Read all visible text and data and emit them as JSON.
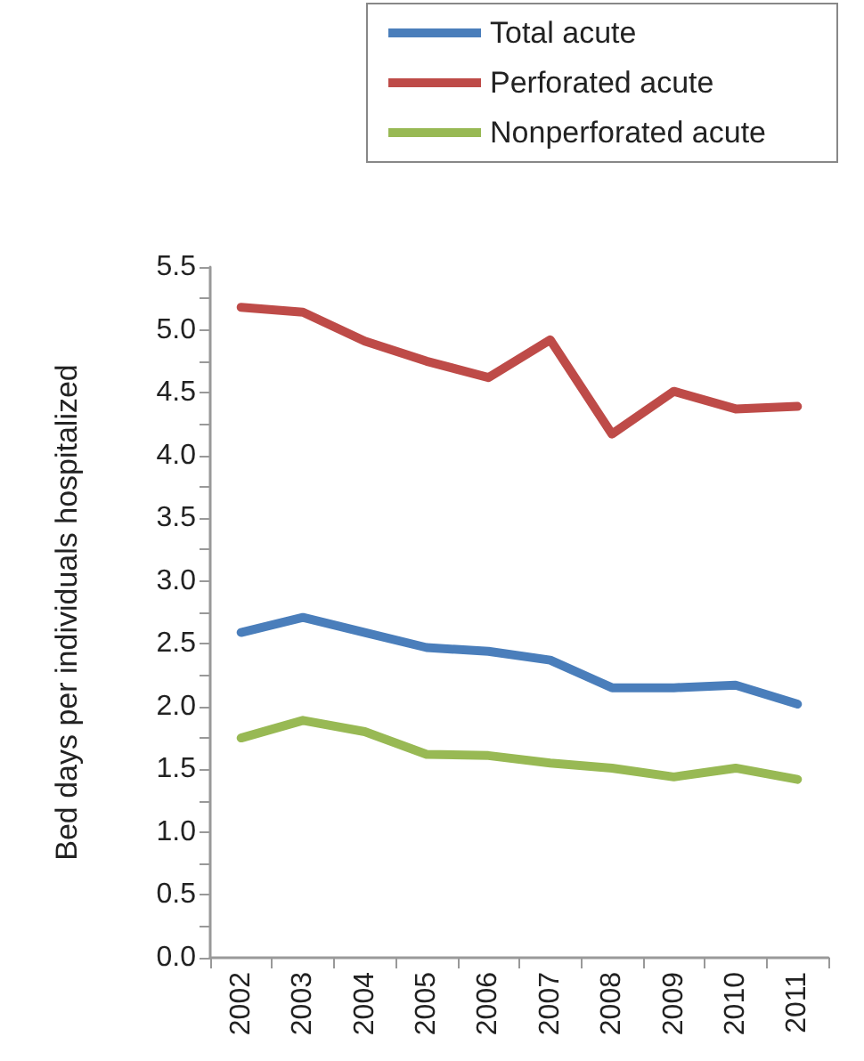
{
  "chart_data": {
    "type": "line",
    "ylabel": "Bed days per individuals hospitalized",
    "categories": [
      "2002",
      "2003",
      "2004",
      "2005",
      "2006",
      "2007",
      "2008",
      "2009",
      "2010",
      "2011"
    ],
    "series": [
      {
        "name": "Total acute",
        "color": "#4a7ebb",
        "values": [
          2.59,
          2.71,
          2.59,
          2.47,
          2.44,
          2.37,
          2.15,
          2.15,
          2.17,
          2.02
        ]
      },
      {
        "name": "Perforated acute",
        "color": "#be4b48",
        "values": [
          5.18,
          5.14,
          4.91,
          4.75,
          4.62,
          4.92,
          4.17,
          4.51,
          4.37,
          4.39
        ]
      },
      {
        "name": "Nonperforated acute",
        "color": "#98b954",
        "values": [
          1.75,
          1.89,
          1.8,
          1.62,
          1.61,
          1.55,
          1.51,
          1.44,
          1.51,
          1.42
        ]
      }
    ],
    "ylim": [
      0,
      5.5
    ],
    "yticks": [
      {
        "value": 0,
        "label": "0.0"
      },
      {
        "value": 0.25,
        "label": null
      },
      0.5,
      {
        "value": 0.75,
        "label": null
      },
      {
        "value": 1,
        "label": "1.0"
      },
      {
        "value": 1.25,
        "label": null
      },
      1.5,
      {
        "value": 1.75,
        "label": null
      },
      {
        "value": 2,
        "label": "2.0"
      },
      {
        "value": 2.25,
        "label": null
      },
      2.5,
      {
        "value": 2.75,
        "label": null
      },
      {
        "value": 3,
        "label": "3.0"
      },
      {
        "value": 3.25,
        "label": null
      },
      3.5,
      {
        "value": 3.75,
        "label": null
      },
      {
        "value": 4,
        "label": "4.0"
      },
      {
        "value": 4.25,
        "label": null
      },
      4.5,
      {
        "value": 4.75,
        "label": null
      },
      {
        "value": 5,
        "label": "5.0"
      },
      {
        "value": 5.25,
        "label": null
      },
      5.5
    ],
    "grid": false,
    "legend": "top right",
    "marker": "none",
    "line_style": "solid"
  }
}
